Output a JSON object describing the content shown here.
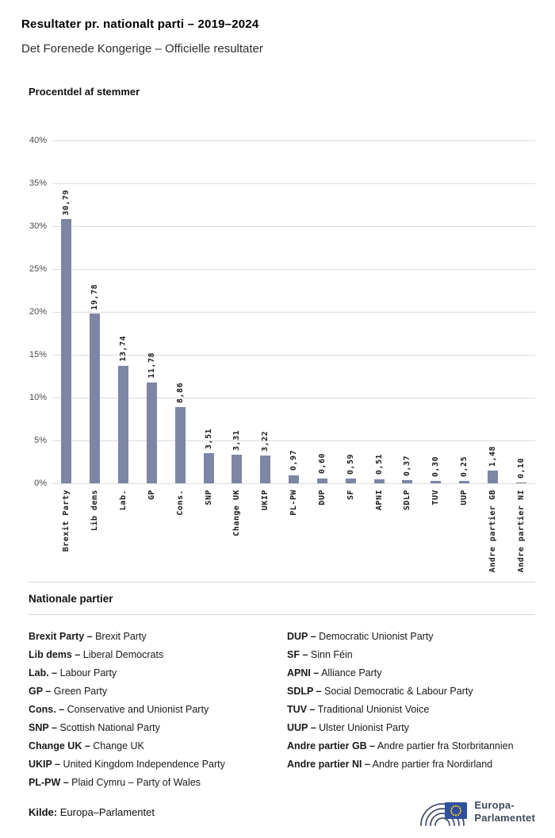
{
  "header": {
    "title": "Resultater pr. nationalt parti – 2019–2024",
    "subtitle": "Det Forenede Kongerige – Officielle resultater"
  },
  "chart_data": {
    "type": "bar",
    "title": "Procentdel af stemmer",
    "categories": [
      "Brexit Party",
      "Lib dems",
      "Lab.",
      "GP",
      "Cons.",
      "SNP",
      "Change UK",
      "UKIP",
      "PL-PW",
      "DUP",
      "SF",
      "APNI",
      "SDLP",
      "TUV",
      "UUP",
      "Andre partier GB",
      "Andre partier NI"
    ],
    "values": [
      30.79,
      19.78,
      13.74,
      11.78,
      8.86,
      3.51,
      3.31,
      3.22,
      0.97,
      0.6,
      0.59,
      0.51,
      0.37,
      0.3,
      0.25,
      1.48,
      0.1
    ],
    "value_labels": [
      "30,79",
      "19,78",
      "13,74",
      "11,78",
      "8,86",
      "3,51",
      "3,31",
      "3,22",
      "0,97",
      "0,60",
      "0,59",
      "0,51",
      "0,37",
      "0,30",
      "0,25",
      "1,48",
      "0,10"
    ],
    "ylim": [
      0,
      40
    ],
    "ytick_step": 5,
    "ytick_suffix": "%",
    "grid": true,
    "legend_position": "none",
    "bar_color": "#7e86a6"
  },
  "legend": {
    "title": "Nationale partier",
    "separator": " – ",
    "columns": [
      [
        {
          "abbr": "Brexit Party",
          "name": "Brexit Party"
        },
        {
          "abbr": "Lib dems",
          "name": "Liberal Democrats"
        },
        {
          "abbr": "Lab.",
          "name": "Labour Party"
        },
        {
          "abbr": "GP",
          "name": "Green Party"
        },
        {
          "abbr": "Cons.",
          "name": "Conservative and Unionist Party"
        },
        {
          "abbr": "SNP",
          "name": "Scottish National Party"
        },
        {
          "abbr": "Change UK",
          "name": "Change UK"
        },
        {
          "abbr": "UKIP",
          "name": "United Kingdom Independence Party"
        },
        {
          "abbr": "PL-PW",
          "name": "Plaid Cymru – Party of Wales"
        }
      ],
      [
        {
          "abbr": "DUP",
          "name": "Democratic Unionist Party"
        },
        {
          "abbr": "SF",
          "name": "Sinn Féin"
        },
        {
          "abbr": "APNI",
          "name": "Alliance Party"
        },
        {
          "abbr": "SDLP",
          "name": "Social Democratic & Labour Party"
        },
        {
          "abbr": "TUV",
          "name": "Traditional Unionist Voice"
        },
        {
          "abbr": "UUP",
          "name": "Ulster Unionist Party"
        },
        {
          "abbr": "Andre partier GB",
          "name": "Andre partier fra Storbritannien"
        },
        {
          "abbr": "Andre partier NI",
          "name": "Andre partier fra Nordirland"
        }
      ]
    ]
  },
  "footer": {
    "source_label": "Kilde:",
    "source_value": "Europa–Parlamentet",
    "logo_text_line1": "Europa-",
    "logo_text_line2": "Parlamentet",
    "logo_colors": {
      "hemicycle": "#45516b",
      "flag": "#2f4f9f",
      "stars": "#ffd617"
    }
  }
}
